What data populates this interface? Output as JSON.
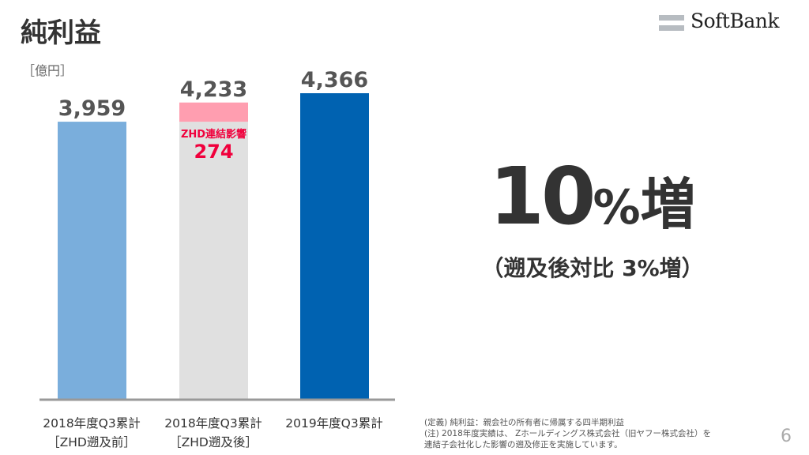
{
  "title": "純利益",
  "unit": "［億円］",
  "logo": {
    "text": "SoftBank"
  },
  "chart_data": {
    "type": "bar",
    "categories": [
      {
        "line1": "2018年度Q3累計",
        "line2": "［ZHD遡及前］"
      },
      {
        "line1": "2018年度Q3累計",
        "line2": "［ZHD遡及後］"
      },
      {
        "line1": "2019年度Q3累計",
        "line2": ""
      }
    ],
    "values": [
      3959,
      4233,
      4366
    ],
    "value_labels": [
      "3,959",
      "4,233",
      "4,366"
    ],
    "colors": [
      "#7aaedc",
      "#e0e0e0",
      "#0062b1"
    ],
    "stack_segment": {
      "bar_index": 1,
      "base_value": 3959,
      "value": 274,
      "label": "ZHD連結影響",
      "value_label": "274",
      "color": "#ff9eb0",
      "text_color": "#f0003c"
    },
    "ylim": [
      0,
      4366
    ],
    "grid": false
  },
  "highlight": {
    "number": "10",
    "percent": "%",
    "suffix": "増",
    "sub": "（遡及後対比 3%増）"
  },
  "notes": [
    "(定義) 純利益：親会社の所有者に帰属する四半期利益",
    "(注) 2018年度実績は、 Zホールディングス株式会社（旧ヤフー株式会社）を",
    "連結子会社化した影響の遡及修正を実施しています。"
  ],
  "page_number": "6"
}
